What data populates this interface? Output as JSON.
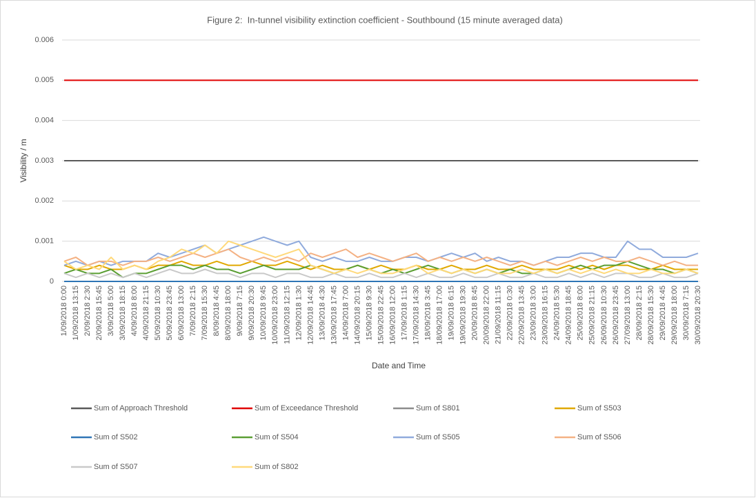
{
  "chart_data": {
    "type": "line",
    "title": "Figure 2:  In-tunnel visibility extinction coefficient - Southbound (15 minute averaged data)",
    "y_label": "Visibility / m",
    "x_label": "Date and Time",
    "ylim": [
      0,
      0.006
    ],
    "yticks": [
      0,
      0.001,
      0.002,
      0.003,
      0.004,
      0.005,
      0.006
    ],
    "grid": true,
    "legend": "bottom",
    "categories": [
      "1/09/2018 0:00",
      "1/09/2018 13:15",
      "2/09/2018 2:30",
      "2/09/2018 15:45",
      "3/09/2018 5:00",
      "3/09/2018 18:15",
      "4/09/2018 8:00",
      "4/09/2018 21:15",
      "5/09/2018 10:30",
      "5/09/2018 23:45",
      "6/09/2018 13:00",
      "7/09/2018 2:15",
      "7/09/2018 15:30",
      "8/09/2018 4:45",
      "8/09/2018 18:00",
      "9/09/2018 7:15",
      "9/09/2018 20:30",
      "10/09/2018 9:45",
      "10/09/2018 23:00",
      "11/09/2018 12:15",
      "12/09/2018 1:30",
      "12/09/2018 14:45",
      "13/09/2018 4:30",
      "13/09/2018 17:45",
      "14/09/2018 7:00",
      "14/09/2018 20:15",
      "15/09/2018 9:30",
      "15/09/2018 22:45",
      "16/09/2018 12:00",
      "17/09/2018 1:15",
      "17/09/2018 14:30",
      "18/09/2018 3:45",
      "18/09/2018 17:00",
      "19/09/2018 6:15",
      "19/09/2018 19:30",
      "20/09/2018 8:45",
      "20/09/2018 22:00",
      "21/09/2018 11:15",
      "22/09/2018 0:30",
      "22/09/2018 13:45",
      "23/09/2018 3:00",
      "23/09/2018 16:15",
      "24/09/2018 5:30",
      "24/09/2018 18:45",
      "25/09/2018 8:00",
      "25/09/2018 21:15",
      "26/09/2018 10:30",
      "26/09/2018 23:45",
      "27/09/2018 13:00",
      "28/09/2018 2:15",
      "28/09/2018 15:30",
      "29/09/2018 4:45",
      "29/09/2018 18:00",
      "30/09/2018 7:15",
      "30/09/2018 20:30"
    ],
    "series": [
      {
        "name": "Sum of Approach Threshold",
        "color": "#595959",
        "values": [
          0.003,
          0.003,
          0.003,
          0.003,
          0.003,
          0.003,
          0.003,
          0.003,
          0.003,
          0.003,
          0.003,
          0.003,
          0.003,
          0.003,
          0.003,
          0.003,
          0.003,
          0.003,
          0.003,
          0.003,
          0.003,
          0.003,
          0.003,
          0.003,
          0.003,
          0.003,
          0.003,
          0.003,
          0.003,
          0.003,
          0.003,
          0.003,
          0.003,
          0.003,
          0.003,
          0.003,
          0.003,
          0.003,
          0.003,
          0.003,
          0.003,
          0.003,
          0.003,
          0.003,
          0.003,
          0.003,
          0.003,
          0.003,
          0.003,
          0.003,
          0.003,
          0.003,
          0.003,
          0.003,
          0.003
        ]
      },
      {
        "name": "Sum of Exceedance Threshold",
        "color": "#e00000",
        "values": [
          0.005,
          0.005,
          0.005,
          0.005,
          0.005,
          0.005,
          0.005,
          0.005,
          0.005,
          0.005,
          0.005,
          0.005,
          0.005,
          0.005,
          0.005,
          0.005,
          0.005,
          0.005,
          0.005,
          0.005,
          0.005,
          0.005,
          0.005,
          0.005,
          0.005,
          0.005,
          0.005,
          0.005,
          0.005,
          0.005,
          0.005,
          0.005,
          0.005,
          0.005,
          0.005,
          0.005,
          0.005,
          0.005,
          0.005,
          0.005,
          0.005,
          0.005,
          0.005,
          0.005,
          0.005,
          0.005,
          0.005,
          0.005,
          0.005,
          0.005,
          0.005,
          0.005,
          0.005,
          0.005,
          0.005
        ]
      },
      {
        "name": "Sum of S801",
        "color": "#8c8c8c",
        "values": [
          0,
          0,
          0,
          0,
          0,
          0,
          0,
          0,
          0,
          0,
          0,
          0,
          0,
          0,
          0,
          0,
          0,
          0,
          0,
          0,
          0,
          0,
          0,
          0,
          0,
          0,
          0,
          0,
          0,
          0,
          0,
          0,
          0,
          0,
          0,
          0,
          0,
          0,
          0,
          0,
          0,
          0,
          0,
          0,
          0,
          0,
          0,
          0,
          0,
          0,
          0,
          0,
          0,
          0,
          0
        ]
      },
      {
        "name": "Sum of S503",
        "color": "#e0a800",
        "values": [
          0.0004,
          0.0003,
          0.0003,
          0.0004,
          0.0003,
          0.0003,
          0.0004,
          0.0003,
          0.0004,
          0.0004,
          0.0005,
          0.0004,
          0.0004,
          0.0005,
          0.0004,
          0.0004,
          0.0005,
          0.0004,
          0.0004,
          0.0005,
          0.0004,
          0.0003,
          0.0004,
          0.0003,
          0.0003,
          0.0004,
          0.0003,
          0.0004,
          0.0003,
          0.0003,
          0.0004,
          0.0003,
          0.0003,
          0.0004,
          0.0003,
          0.0003,
          0.0004,
          0.0003,
          0.0003,
          0.0004,
          0.0003,
          0.0003,
          0.0003,
          0.0004,
          0.0003,
          0.0004,
          0.0003,
          0.0004,
          0.0004,
          0.0003,
          0.0003,
          0.0004,
          0.0003,
          0.0003,
          0.0003
        ]
      },
      {
        "name": "Sum of S502",
        "color": "#2e75b6",
        "values": [
          0,
          0,
          0,
          0,
          0,
          0,
          0,
          0,
          0,
          0,
          0,
          0,
          0,
          0,
          0,
          0,
          0,
          0,
          0,
          0,
          0,
          0,
          0,
          0,
          0,
          0,
          0,
          0,
          0,
          0,
          0,
          0,
          0,
          0,
          0,
          0,
          0,
          0,
          0,
          0,
          0,
          0,
          0,
          0,
          0,
          0,
          0,
          0,
          0,
          0,
          0,
          0,
          0,
          0,
          0
        ]
      },
      {
        "name": "Sum of S504",
        "color": "#5a9e32",
        "values": [
          0.0002,
          0.0003,
          0.0002,
          0.0002,
          0.0003,
          0.0001,
          0.0002,
          0.0002,
          0.0003,
          0.0004,
          0.0004,
          0.0003,
          0.0004,
          0.0003,
          0.0003,
          0.0002,
          0.0003,
          0.0004,
          0.0003,
          0.0003,
          0.0003,
          0.0004,
          0.0003,
          0.0002,
          0.0003,
          0.0004,
          0.0003,
          0.0002,
          0.0003,
          0.0002,
          0.0003,
          0.0004,
          0.0003,
          0.0002,
          0.0003,
          0.0002,
          0.0003,
          0.0002,
          0.0003,
          0.0002,
          0.0002,
          0.0003,
          0.0002,
          0.0003,
          0.0004,
          0.0003,
          0.0004,
          0.0004,
          0.0005,
          0.0004,
          0.0003,
          0.0003,
          0.0002,
          0.0003,
          0.0002
        ]
      },
      {
        "name": "Sum of S505",
        "color": "#8faadc",
        "values": [
          0.0004,
          0.0005,
          0.0004,
          0.0005,
          0.0004,
          0.0005,
          0.0005,
          0.0005,
          0.0007,
          0.0006,
          0.0007,
          0.0008,
          0.0009,
          0.0007,
          0.0008,
          0.0009,
          0.001,
          0.0011,
          0.001,
          0.0009,
          0.001,
          0.0006,
          0.0005,
          0.0006,
          0.0005,
          0.0005,
          0.0006,
          0.0005,
          0.0005,
          0.0006,
          0.0006,
          0.0005,
          0.0006,
          0.0007,
          0.0006,
          0.0007,
          0.0005,
          0.0006,
          0.0005,
          0.0005,
          0.0004,
          0.0005,
          0.0006,
          0.0006,
          0.0007,
          0.0007,
          0.0006,
          0.0006,
          0.001,
          0.0008,
          0.0008,
          0.0006,
          0.0006,
          0.0006,
          0.0007
        ]
      },
      {
        "name": "Sum of S506",
        "color": "#f4b183",
        "values": [
          0.0005,
          0.0006,
          0.0004,
          0.0005,
          0.0005,
          0.0004,
          0.0005,
          0.0005,
          0.0006,
          0.0005,
          0.0006,
          0.0007,
          0.0006,
          0.0007,
          0.0008,
          0.0006,
          0.0005,
          0.0006,
          0.0005,
          0.0006,
          0.0005,
          0.0007,
          0.0006,
          0.0007,
          0.0008,
          0.0006,
          0.0007,
          0.0006,
          0.0005,
          0.0006,
          0.0007,
          0.0005,
          0.0006,
          0.0005,
          0.0006,
          0.0005,
          0.0006,
          0.0005,
          0.0004,
          0.0005,
          0.0004,
          0.0005,
          0.0004,
          0.0005,
          0.0006,
          0.0005,
          0.0006,
          0.0005,
          0.0005,
          0.0006,
          0.0005,
          0.0004,
          0.0005,
          0.0004,
          0.0004
        ]
      },
      {
        "name": "Sum of S507",
        "color": "#c9c9c9",
        "values": [
          0.0002,
          0.0001,
          0.0002,
          0.0001,
          0.0002,
          0.0001,
          0.0002,
          0.0001,
          0.0002,
          0.0003,
          0.0002,
          0.0002,
          0.0003,
          0.0002,
          0.0002,
          0.0001,
          0.0002,
          0.0002,
          0.0001,
          0.0002,
          0.0002,
          0.0001,
          0.0001,
          0.0002,
          0.0001,
          0.0001,
          0.0002,
          0.0001,
          0.0001,
          0.0002,
          0.0001,
          0.0002,
          0.0001,
          0.0001,
          0.0002,
          0.0001,
          0.0001,
          0.0002,
          0.0001,
          0.0001,
          0.0002,
          0.0001,
          0.0001,
          0.0002,
          0.0001,
          0.0002,
          0.0001,
          0.0002,
          0.0002,
          0.0001,
          0.0001,
          0.0002,
          0.0001,
          0.0001,
          0.0002
        ]
      },
      {
        "name": "Sum of S802",
        "color": "#ffd97a",
        "values": [
          0.0005,
          0.0003,
          0.0004,
          0.0003,
          0.0006,
          0.0003,
          0.0004,
          0.0003,
          0.0005,
          0.0006,
          0.0008,
          0.0007,
          0.0009,
          0.0007,
          0.001,
          0.0009,
          0.0008,
          0.0007,
          0.0006,
          0.0007,
          0.0008,
          0.0004,
          0.0003,
          0.0002,
          0.0003,
          0.0002,
          0.0003,
          0.0002,
          0.0002,
          0.0003,
          0.0004,
          0.0002,
          0.0003,
          0.0002,
          0.0003,
          0.0002,
          0.0003,
          0.0002,
          0.0002,
          0.0003,
          0.0002,
          0.0003,
          0.0002,
          0.0003,
          0.0002,
          0.0003,
          0.0002,
          0.0003,
          0.0002,
          0.0002,
          0.0003,
          0.0002,
          0.0002,
          0.0003,
          0.0002
        ]
      }
    ]
  }
}
